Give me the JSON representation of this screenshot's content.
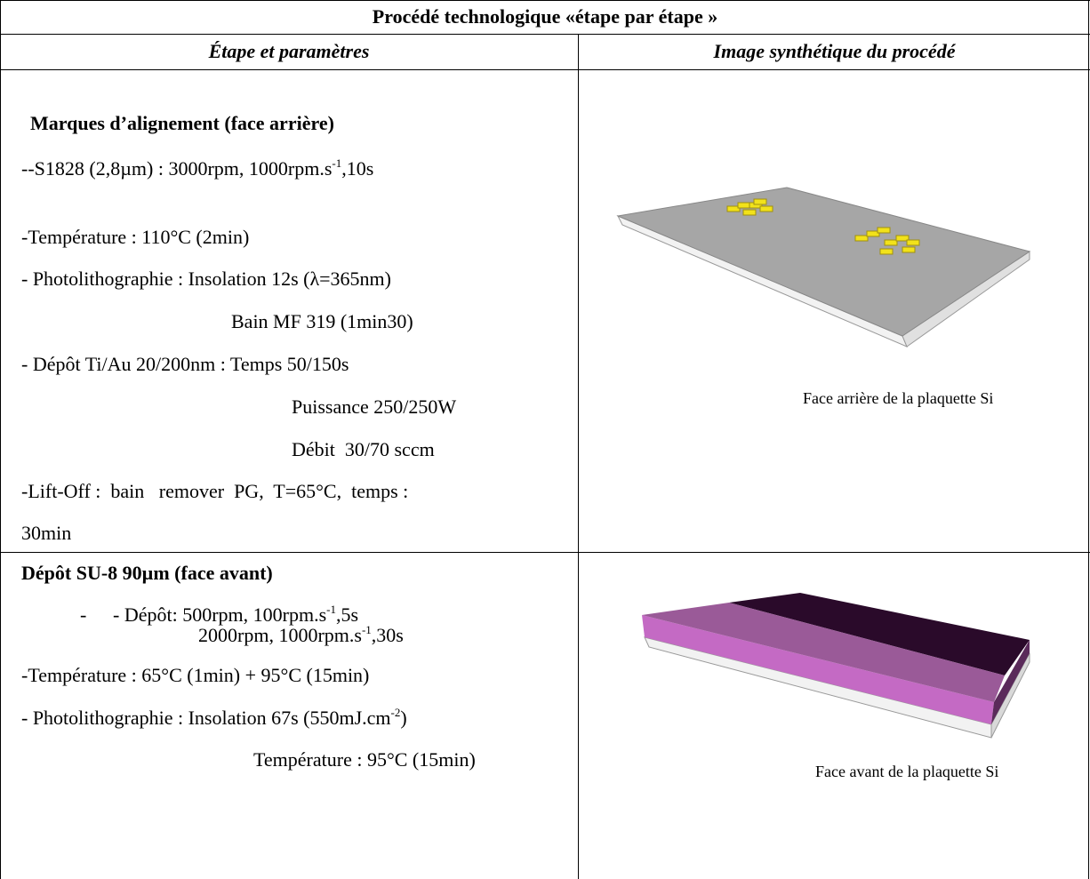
{
  "title": "Procédé technologique «étape par étape »",
  "headers": [
    "Étape et paramètres",
    "Image synthétique du procédé"
  ],
  "steps": [
    {
      "heading": "Marques d’alignement (face arrière)",
      "lines": [
        [
          "--S1828 (2,8µm) : 3000rpm, 1000rpm.s",
          {
            "text": "-1",
            "sup": true
          },
          ",10s"
        ],
        [
          "-Température : 110°C (2min)"
        ],
        [
          "- Photolithographie : Insolation 12s (λ=365nm)"
        ],
        [
          "Bain MF 319 (1min30)"
        ],
        [
          "- Dépôt Ti/Au 20/200nm : Temps 50/150s"
        ],
        [
          "Puissance 250/250W"
        ],
        [
          "Débit  30/70 sccm"
        ],
        [
          "-Lift-Off :  bain   remover  PG,  T=65°C,  temps :"
        ],
        [
          "30min"
        ]
      ],
      "caption": "Face arrière de la plaquette Si"
    },
    {
      "heading": "Dépôt SU-8 90µm (face avant)",
      "lines": [
        [
          "-"
        ],
        [
          "- Dépôt: 500rpm, 100rpm.s",
          {
            "text": "-1",
            "sup": true
          },
          ",5s"
        ],
        [
          "2000rpm, 1000rpm.s",
          {
            "text": "-1",
            "sup": true
          },
          ",30s"
        ],
        [
          "-Température : 65°C (1min) + 95°C (15min)"
        ],
        [
          "- Photolithographie : Insolation 67s (550mJ.cm",
          {
            "text": "-2",
            "sup": true
          },
          ")"
        ],
        [
          "Température : 95°C (15min)"
        ]
      ],
      "caption": "Face avant de la plaquette Si"
    }
  ]
}
